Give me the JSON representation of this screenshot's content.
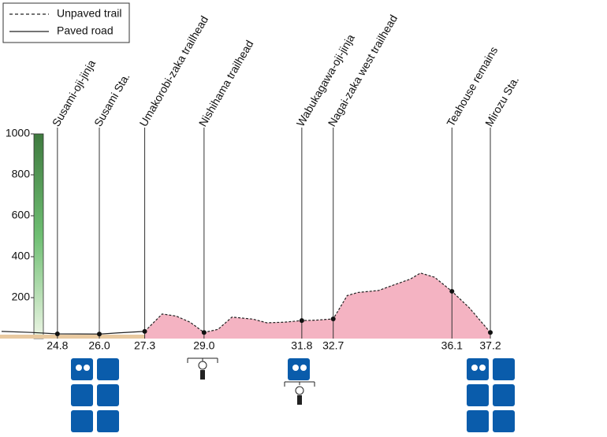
{
  "chart_data": {
    "type": "area",
    "x": [
      23.2,
      24.05,
      24.8,
      26.0,
      26.54,
      27.3,
      27.8,
      28.2,
      28.6,
      29.0,
      29.4,
      29.8,
      30.4,
      30.8,
      31.3,
      31.8,
      32.2,
      32.7,
      33.1,
      33.4,
      34.0,
      34.4,
      34.9,
      35.2,
      35.6,
      36.1,
      36.6,
      36.9,
      37.2
    ],
    "series": [
      {
        "name": "Unpaved trail",
        "color": "#f4b3c2",
        "dashed": true,
        "values": [
          null,
          null,
          null,
          null,
          null,
          35,
          120,
          110,
          80,
          30,
          45,
          105,
          95,
          77,
          80,
          88,
          90,
          96,
          210,
          225,
          235,
          260,
          290,
          320,
          300,
          231,
          150,
          90,
          30
        ]
      },
      {
        "name": "Paved road",
        "color": "#222222",
        "dashed": false,
        "values": [
          35,
          30,
          23,
          22,
          28,
          35,
          null,
          null,
          null,
          null,
          null,
          null,
          null,
          null,
          null,
          null,
          null,
          null,
          null,
          null,
          null,
          null,
          null,
          null,
          null,
          null,
          null,
          null,
          null
        ]
      }
    ],
    "waypoints": [
      "Susami-oji-jinja",
      "Susami Sta.",
      "Umakorobi-zaka trailhead",
      "Nishihama trailhead",
      "Wabukagawa-oji-jinja",
      "Nagai-zaka west trailhead",
      "Teahouse remains",
      "Mirozu Sta."
    ],
    "xlim": [
      23.2,
      37.2
    ],
    "xticks": [
      24.8,
      {
        "value": 26,
        "label": "26.0"
      },
      27.3,
      {
        "value": 29,
        "label": "29.0"
      },
      31.8,
      32.7,
      36.1,
      37.2
    ],
    "ylim": [
      0,
      1000
    ],
    "yticks": [
      200,
      400,
      600,
      800,
      1000
    ],
    "legend": "top-left"
  }
}
